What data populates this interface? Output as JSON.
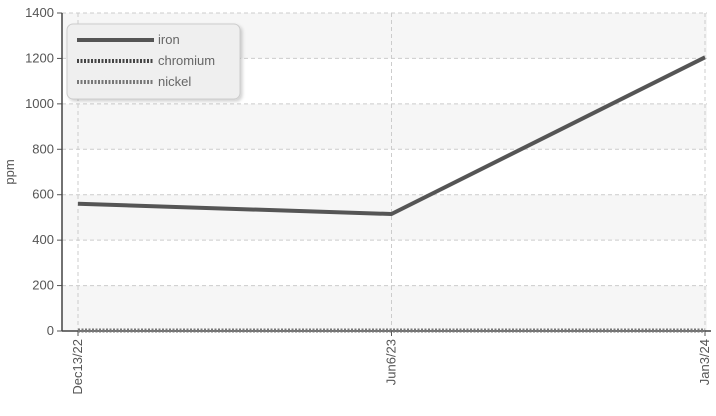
{
  "chart_data": {
    "type": "line",
    "title": "",
    "xlabel": "",
    "ylabel": "ppm",
    "categories": [
      "Dec13/22",
      "Jun6/23",
      "Jan3/24"
    ],
    "ylim": [
      0,
      1400
    ],
    "yticks": [
      0,
      200,
      400,
      600,
      800,
      1000,
      1200,
      1400
    ],
    "grid": true,
    "legend_position": "top-left",
    "series": [
      {
        "name": "iron",
        "values": [
          560,
          515,
          1205
        ],
        "color": "#555555",
        "style": "solid"
      },
      {
        "name": "chromium",
        "values": [
          2,
          2,
          2
        ],
        "color": "#444444",
        "style": "dotted"
      },
      {
        "name": "nickel",
        "values": [
          2,
          2,
          2
        ],
        "color": "#777777",
        "style": "dotted"
      }
    ]
  }
}
